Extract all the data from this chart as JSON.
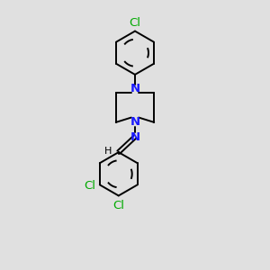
{
  "background_color": "#e0e0e0",
  "atom_color_N": "#1a1aff",
  "atom_color_Cl": "#00aa00",
  "bond_color": "#000000",
  "figsize": [
    3.0,
    3.0
  ],
  "dpi": 100,
  "xlim": [
    0,
    10
  ],
  "ylim": [
    0,
    10
  ]
}
